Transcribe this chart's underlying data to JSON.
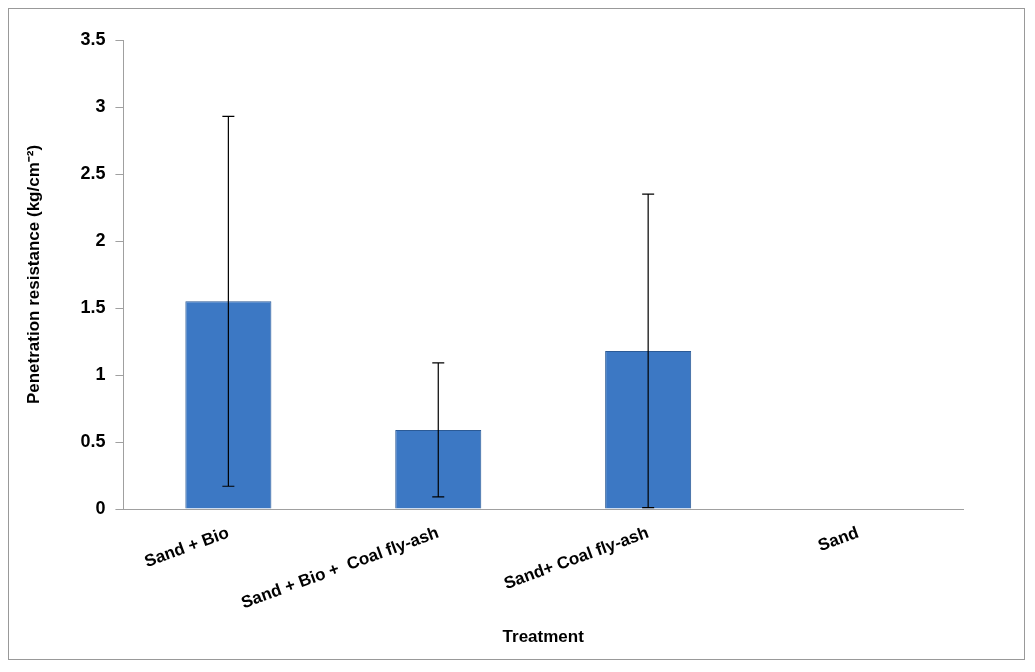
{
  "chart_data": {
    "type": "bar",
    "categories": [
      "Sand + Bio",
      "Sand + Bio +  Coal fly-ash",
      "Sand+ Coal fly-ash",
      "Sand"
    ],
    "values": [
      1.55,
      0.59,
      1.18,
      0
    ],
    "errors": [
      1.38,
      0.5,
      1.17,
      null
    ],
    "color": "#3c78c4",
    "xlabel": "Treatment",
    "ylabel": "Penetration resistance (kg/cm⁻²)",
    "ylim": [
      0,
      3.5
    ],
    "yticks": [
      0,
      0.5,
      1,
      1.5,
      2,
      2.5,
      3,
      3.5
    ],
    "grid": false
  }
}
